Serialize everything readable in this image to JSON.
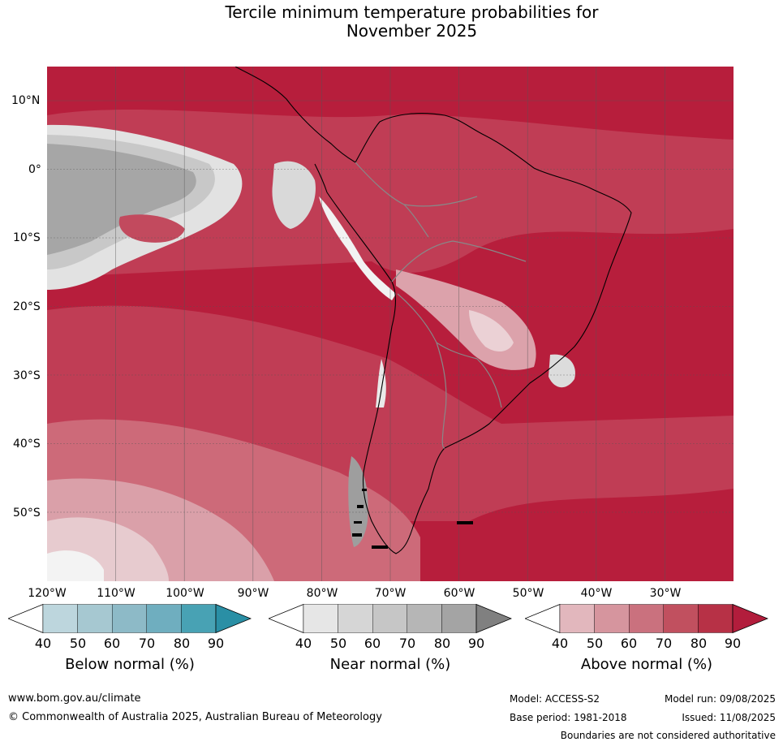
{
  "title": {
    "line1": "Tercile minimum temperature probabilities for",
    "line2": "November 2025"
  },
  "map": {
    "lat_labels": [
      "10°N",
      "0°",
      "10°S",
      "20°S",
      "30°S",
      "40°S",
      "50°S"
    ],
    "lon_labels": [
      "120°W",
      "110°W",
      "100°W",
      "90°W",
      "80°W",
      "70°W",
      "60°W",
      "50°W",
      "40°W",
      "30°W"
    ],
    "background_category": "above normal"
  },
  "legends": [
    {
      "title": "Below normal (%)",
      "ticks": [
        "40",
        "50",
        "60",
        "70",
        "80",
        "90"
      ],
      "colors": [
        "#ffffff",
        "#bdd6dd",
        "#a6c8d1",
        "#8dbac7",
        "#6faebf",
        "#48a2b4",
        "#2a8fa5"
      ]
    },
    {
      "title": "Near normal (%)",
      "ticks": [
        "40",
        "50",
        "60",
        "70",
        "80",
        "90"
      ],
      "colors": [
        "#ffffff",
        "#e6e6e6",
        "#d6d6d6",
        "#c6c6c6",
        "#b6b6b6",
        "#a4a4a4",
        "#808080"
      ]
    },
    {
      "title": "Above normal (%)",
      "ticks": [
        "40",
        "50",
        "60",
        "70",
        "80",
        "90"
      ],
      "colors": [
        "#ffffff",
        "#e2b7bd",
        "#d6959e",
        "#ca717e",
        "#c1505f",
        "#b73146",
        "#b21d3c"
      ]
    }
  ],
  "footer": {
    "website": "www.bom.gov.au/climate",
    "copyright": "© Commonwealth of Australia 2025, Australian Bureau of Meteorology",
    "model": "Model: ACCESS-S2",
    "base_period": "Base period: 1981-2018",
    "model_run": "Model run: 09/08/2025",
    "issued": "Issued: 11/08/2025",
    "boundaries_note": "Boundaries are not considered authoritative"
  }
}
